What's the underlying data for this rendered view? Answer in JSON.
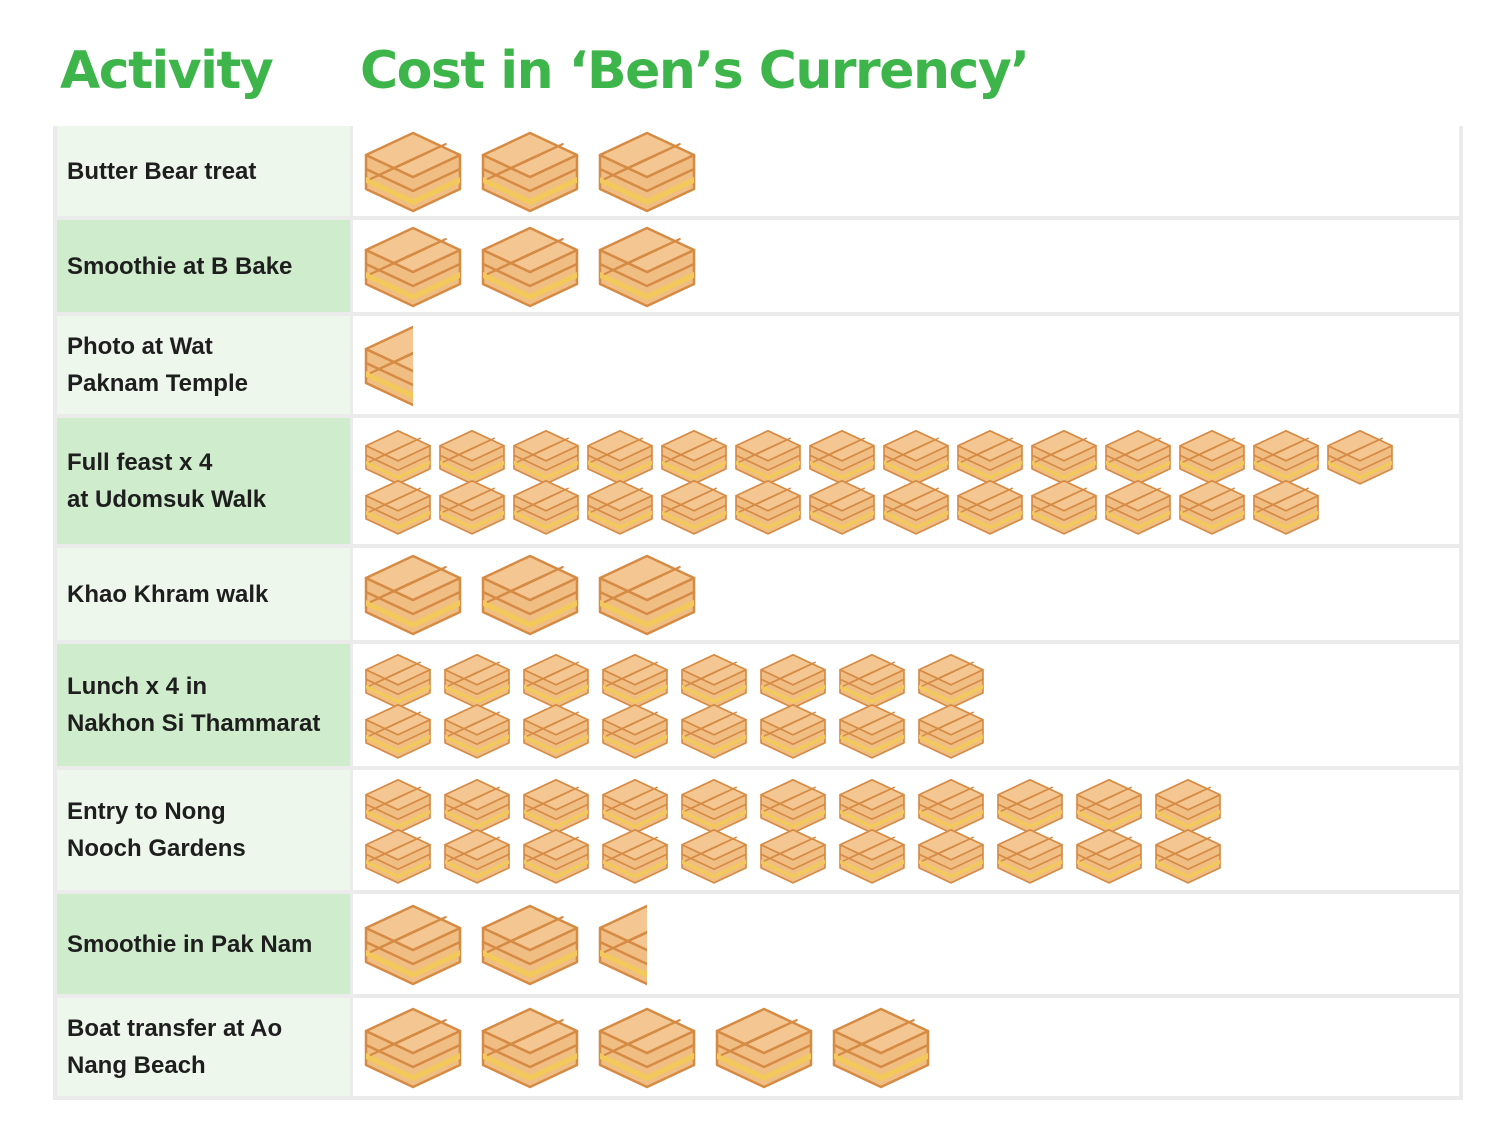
{
  "header": {
    "activity": "Activity",
    "cost": "Cost in ‘Ben’s Currency’"
  },
  "colors": {
    "header_green": "#3db54a",
    "row_light": "#eef7ec",
    "row_dark": "#cfeccd",
    "bread": "#f0bd83",
    "crust": "#d68b45",
    "cheese": "#f3c95b"
  },
  "icon": "toasted-sandwich-icon",
  "chart_data": {
    "type": "table",
    "columns": [
      "Activity",
      "Cost in ‘Ben’s Currency’"
    ],
    "unit": "toasted sandwich",
    "categories": [
      "Butter Bear treat",
      "Smoothie at B Bake",
      "Photo at Wat\nPaknam Temple",
      "Full feast x 4\nat Udomsuk Walk",
      "Khao Khram walk",
      "Lunch x 4 in\nNakhon Si Thammarat",
      "Entry to Nong\nNooch Gardens",
      "Smoothie in Pak Nam",
      "Boat transfer at Ao\nNang Beach"
    ],
    "values": [
      3,
      3,
      0.5,
      27,
      3,
      16,
      22,
      2.5,
      5
    ]
  }
}
